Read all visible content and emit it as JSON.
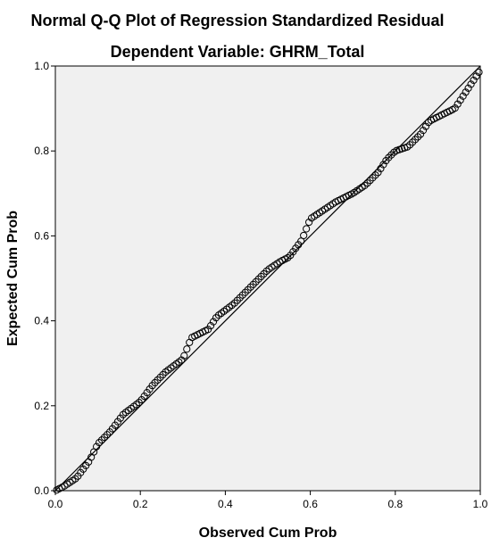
{
  "chart_data": {
    "type": "scatter",
    "title": "Normal Q-Q Plot of Regression Standardized Residual",
    "subtitle": "Dependent Variable: GHRM_Total",
    "xlabel": "Observed Cum Prob",
    "ylabel": "Expected Cum Prob",
    "xlim": [
      0,
      1
    ],
    "ylim": [
      0,
      1
    ],
    "x_ticks": [
      "0.0",
      "0.2",
      "0.4",
      "0.6",
      "0.8",
      "1.0"
    ],
    "y_ticks": [
      "0.0",
      "0.2",
      "0.4",
      "0.6",
      "0.8",
      "1.0"
    ],
    "grid": false,
    "reference_line": {
      "from": [
        0,
        0
      ],
      "to": [
        1,
        1
      ]
    },
    "colors": {
      "plot_background": "#f0f0f0",
      "marker_edge": "#000000",
      "line": "#000000"
    },
    "control_points": {
      "x": [
        0.0,
        0.02,
        0.05,
        0.08,
        0.1,
        0.13,
        0.16,
        0.2,
        0.23,
        0.26,
        0.3,
        0.32,
        0.34,
        0.36,
        0.38,
        0.42,
        0.46,
        0.5,
        0.53,
        0.55,
        0.58,
        0.6,
        0.63,
        0.66,
        0.7,
        0.73,
        0.76,
        0.78,
        0.8,
        0.83,
        0.86,
        0.88,
        0.9,
        0.92,
        0.94,
        0.96,
        0.98,
        1.0
      ],
      "y": [
        0.0,
        0.01,
        0.03,
        0.07,
        0.11,
        0.14,
        0.18,
        0.21,
        0.25,
        0.28,
        0.31,
        0.36,
        0.37,
        0.38,
        0.41,
        0.44,
        0.48,
        0.52,
        0.54,
        0.55,
        0.59,
        0.64,
        0.66,
        0.68,
        0.7,
        0.72,
        0.75,
        0.78,
        0.8,
        0.81,
        0.84,
        0.87,
        0.88,
        0.89,
        0.9,
        0.93,
        0.96,
        0.99
      ]
    },
    "point_count": 160
  }
}
